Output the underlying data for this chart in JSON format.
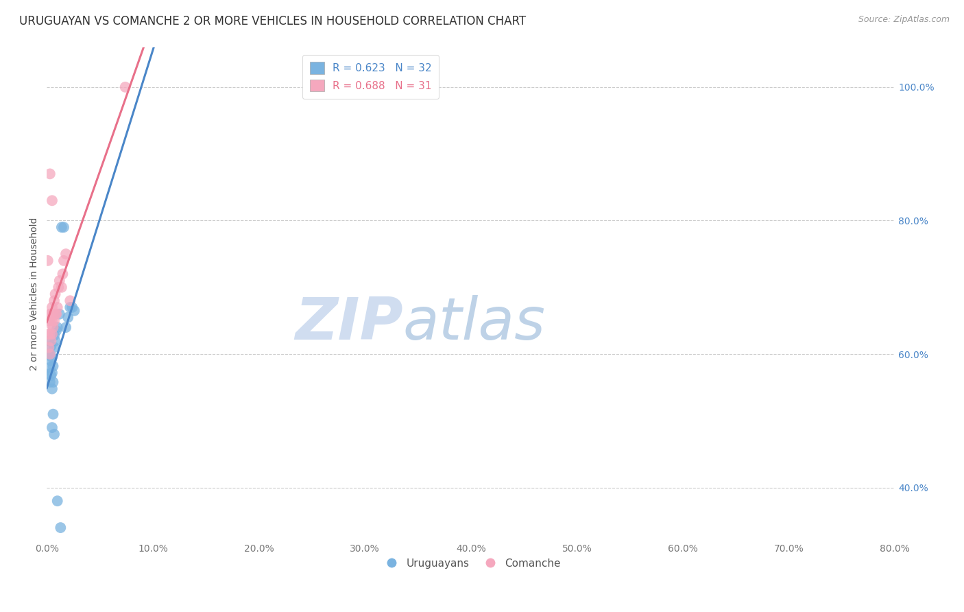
{
  "title": "URUGUAYAN VS COMANCHE 2 OR MORE VEHICLES IN HOUSEHOLD CORRELATION CHART",
  "source": "Source: ZipAtlas.com",
  "ylabel": "2 or more Vehicles in Household",
  "xlabel_ticks": [
    "0.0%",
    "10.0%",
    "20.0%",
    "30.0%",
    "40.0%",
    "50.0%",
    "60.0%",
    "70.0%",
    "80.0%"
  ],
  "ylabel_ticks": [
    "40.0%",
    "60.0%",
    "80.0%",
    "100.0%"
  ],
  "xmin": 0.0,
  "xmax": 0.8,
  "ymin": 0.32,
  "ymax": 1.06,
  "watermark_zip": "ZIP",
  "watermark_atlas": "atlas",
  "legend_blue_label": "Uruguayans",
  "legend_pink_label": "Comanche",
  "legend_blue_r": "R = 0.623",
  "legend_blue_n": "N = 32",
  "legend_pink_r": "R = 0.688",
  "legend_pink_n": "N = 31",
  "blue_color": "#7ab3e0",
  "pink_color": "#f5a8be",
  "blue_line_color": "#4a86c8",
  "pink_line_color": "#e8708a",
  "blue_scatter": [
    [
      0.001,
      0.57
    ],
    [
      0.002,
      0.6
    ],
    [
      0.002,
      0.62
    ],
    [
      0.003,
      0.558
    ],
    [
      0.003,
      0.58
    ],
    [
      0.003,
      0.6
    ],
    [
      0.004,
      0.568
    ],
    [
      0.004,
      0.59
    ],
    [
      0.004,
      0.612
    ],
    [
      0.005,
      0.548
    ],
    [
      0.005,
      0.572
    ],
    [
      0.005,
      0.595
    ],
    [
      0.006,
      0.558
    ],
    [
      0.006,
      0.582
    ],
    [
      0.007,
      0.61
    ],
    [
      0.007,
      0.628
    ],
    [
      0.008,
      0.62
    ],
    [
      0.009,
      0.635
    ],
    [
      0.01,
      0.64
    ],
    [
      0.012,
      0.66
    ],
    [
      0.014,
      0.79
    ],
    [
      0.016,
      0.79
    ],
    [
      0.018,
      0.64
    ],
    [
      0.02,
      0.655
    ],
    [
      0.022,
      0.67
    ],
    [
      0.024,
      0.67
    ],
    [
      0.026,
      0.665
    ],
    [
      0.005,
      0.49
    ],
    [
      0.006,
      0.51
    ],
    [
      0.007,
      0.48
    ],
    [
      0.01,
      0.38
    ],
    [
      0.013,
      0.34
    ]
  ],
  "pink_scatter": [
    [
      0.001,
      0.63
    ],
    [
      0.002,
      0.61
    ],
    [
      0.002,
      0.65
    ],
    [
      0.003,
      0.6
    ],
    [
      0.003,
      0.63
    ],
    [
      0.003,
      0.66
    ],
    [
      0.004,
      0.62
    ],
    [
      0.004,
      0.645
    ],
    [
      0.004,
      0.66
    ],
    [
      0.005,
      0.63
    ],
    [
      0.005,
      0.65
    ],
    [
      0.005,
      0.67
    ],
    [
      0.006,
      0.64
    ],
    [
      0.006,
      0.66
    ],
    [
      0.007,
      0.65
    ],
    [
      0.007,
      0.68
    ],
    [
      0.008,
      0.66
    ],
    [
      0.008,
      0.69
    ],
    [
      0.009,
      0.66
    ],
    [
      0.01,
      0.67
    ],
    [
      0.011,
      0.7
    ],
    [
      0.012,
      0.71
    ],
    [
      0.014,
      0.7
    ],
    [
      0.015,
      0.72
    ],
    [
      0.016,
      0.74
    ],
    [
      0.018,
      0.75
    ],
    [
      0.003,
      0.87
    ],
    [
      0.005,
      0.83
    ],
    [
      0.001,
      0.74
    ],
    [
      0.074,
      1.0
    ],
    [
      0.022,
      0.68
    ]
  ],
  "title_fontsize": 12,
  "source_fontsize": 9,
  "legend_fontsize": 11,
  "tick_fontsize": 10,
  "ylabel_fontsize": 10,
  "grid_color": "#cccccc",
  "tick_color_x": "#777777",
  "tick_color_y": "#4a86c8",
  "title_color": "#333333",
  "source_color": "#999999"
}
